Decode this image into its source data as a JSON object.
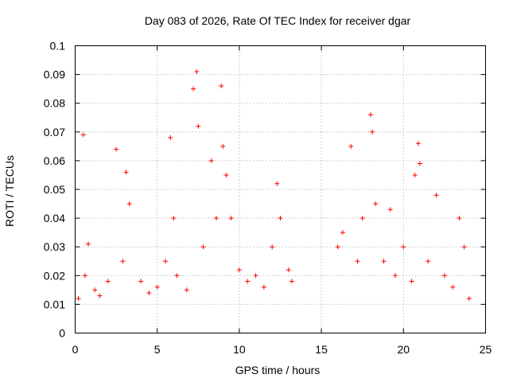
{
  "chart_data": {
    "type": "scatter",
    "title": "Day 083 of 2026, Rate Of TEC Index for receiver dgar",
    "xlabel": "GPS time / hours",
    "ylabel": "ROTI / TECUs",
    "xlim": [
      0,
      25
    ],
    "ylim": [
      0,
      0.1
    ],
    "x_ticks": [
      0,
      5,
      10,
      15,
      20,
      25
    ],
    "y_ticks": [
      0,
      0.01,
      0.02,
      0.03,
      0.04,
      0.05,
      0.06,
      0.07,
      0.08,
      0.09,
      0.1
    ],
    "x_tick_labels": [
      "0",
      "5",
      "10",
      "15",
      "20",
      "25"
    ],
    "y_tick_labels": [
      "0",
      "0.01",
      "0.02",
      "0.03",
      "0.04",
      "0.05",
      "0.06",
      "0.07",
      "0.08",
      "0.09",
      "0.1"
    ],
    "grid": true,
    "marker": "+",
    "color": "#ff0000",
    "data_gaps_hours": [
      [
        13.4,
        15.9
      ]
    ],
    "series": [
      {
        "x": [
          0.2,
          0.5,
          0.6,
          0.8,
          1.2,
          1.5,
          2.0,
          2.5,
          2.9,
          3.1,
          3.3,
          4.0,
          4.5,
          5.0,
          5.5,
          5.8,
          6.0,
          6.2,
          6.8,
          7.2,
          7.4,
          7.5,
          7.8,
          8.3,
          8.6,
          8.9,
          9.0,
          9.2,
          9.5,
          10.0,
          10.5,
          11.0,
          11.5,
          12.0,
          12.3,
          12.5,
          13.0,
          13.2,
          16.0,
          16.3,
          16.8,
          17.2,
          17.5,
          18.0,
          18.1,
          18.3,
          18.8,
          19.2,
          19.5,
          20.0,
          20.5,
          20.7,
          20.9,
          21.0,
          21.5,
          22.0,
          22.5,
          23.0,
          23.4,
          23.7,
          24.0
        ],
        "y": [
          0.012,
          0.069,
          0.02,
          0.031,
          0.015,
          0.013,
          0.018,
          0.064,
          0.025,
          0.056,
          0.045,
          0.018,
          0.014,
          0.016,
          0.025,
          0.068,
          0.04,
          0.02,
          0.015,
          0.085,
          0.091,
          0.072,
          0.03,
          0.06,
          0.04,
          0.086,
          0.065,
          0.055,
          0.04,
          0.022,
          0.018,
          0.02,
          0.016,
          0.03,
          0.052,
          0.04,
          0.022,
          0.018,
          0.03,
          0.035,
          0.065,
          0.025,
          0.04,
          0.076,
          0.07,
          0.045,
          0.025,
          0.043,
          0.02,
          0.03,
          0.018,
          0.055,
          0.066,
          0.059,
          0.025,
          0.048,
          0.02,
          0.016,
          0.04,
          0.03,
          0.012
        ]
      }
    ]
  }
}
